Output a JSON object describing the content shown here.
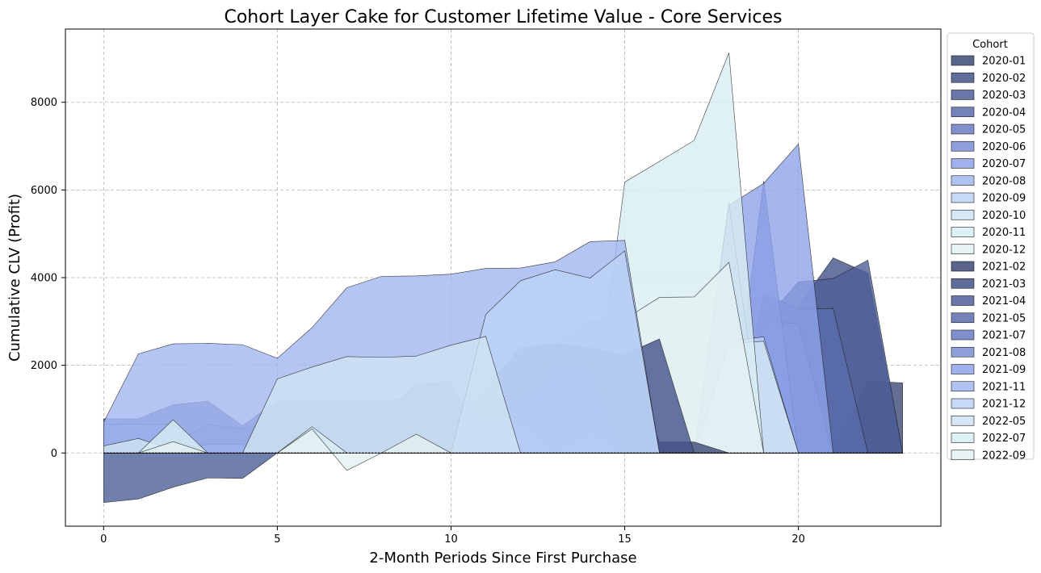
{
  "chart_data": {
    "type": "area",
    "title": "Cohort Layer Cake for Customer Lifetime Value - Core Services",
    "xlabel": "2-Month Periods Since First Purchase",
    "ylabel": "Cumulative CLV (Profit)",
    "xlim": [
      -1.1,
      24.1
    ],
    "ylim": [
      -1670,
      9670
    ],
    "xticks": [
      0,
      5,
      10,
      15,
      20
    ],
    "yticks": [
      0,
      2000,
      4000,
      6000,
      8000
    ],
    "grid": true,
    "legend_title": "Cohort",
    "legend_position": "right",
    "series": [
      {
        "name": "2020-01",
        "color": "#3d4a78",
        "x": [
          0,
          1,
          2,
          3,
          4,
          5,
          6,
          7,
          8,
          9,
          10,
          11,
          12,
          13,
          14,
          15,
          16,
          17,
          18,
          19,
          20,
          21,
          22,
          23
        ],
        "values": [
          0,
          0,
          0,
          0,
          0,
          0,
          0,
          0,
          0,
          0,
          0,
          0,
          0,
          0,
          0,
          0,
          0,
          0,
          0,
          0,
          0,
          0,
          1640,
          1600
        ]
      },
      {
        "name": "2020-02",
        "color": "#44538a",
        "x": [
          0,
          1,
          2,
          3,
          4,
          5,
          6,
          7,
          8,
          9,
          10,
          11,
          12,
          13,
          14,
          15,
          16,
          17,
          18,
          19,
          20,
          21,
          22,
          23
        ],
        "values": [
          0,
          0,
          0,
          0,
          0,
          0,
          0,
          0,
          0,
          0,
          0,
          0,
          0,
          0,
          0,
          0,
          0,
          0,
          0,
          0,
          3350,
          4450,
          4100,
          0
        ]
      },
      {
        "name": "2020-03",
        "color": "#4d5f98",
        "x": [
          0,
          1,
          2,
          3,
          4,
          5,
          6,
          7,
          8,
          9,
          10,
          11,
          12,
          13,
          14,
          15,
          16,
          17,
          18,
          19,
          20,
          21,
          22,
          23
        ],
        "values": [
          0,
          0,
          0,
          0,
          0,
          0,
          0,
          0,
          0,
          0,
          0,
          0,
          0,
          0,
          0,
          0,
          0,
          0,
          0,
          3000,
          3900,
          3980,
          4400,
          0
        ]
      },
      {
        "name": "2020-04",
        "color": "#5a6cab",
        "x": [
          0,
          1,
          2,
          3,
          4,
          5,
          6,
          7,
          8,
          9,
          10,
          11,
          12,
          13,
          14,
          15,
          16,
          17,
          18,
          19,
          20,
          21,
          22,
          23
        ],
        "values": [
          0,
          0,
          0,
          0,
          0,
          0,
          0,
          0,
          0,
          0,
          0,
          0,
          0,
          0,
          0,
          0,
          0,
          0,
          0,
          3650,
          3280,
          3300,
          0,
          0
        ]
      },
      {
        "name": "2020-05",
        "color": "#6b7dc2",
        "x": [
          0,
          1,
          2,
          3,
          4,
          5,
          6,
          7,
          8,
          9,
          10,
          11,
          12,
          13,
          14,
          15,
          16,
          17,
          18,
          19,
          20,
          21,
          22,
          23
        ],
        "values": [
          0,
          0,
          0,
          0,
          0,
          0,
          0,
          0,
          0,
          0,
          0,
          0,
          0,
          0,
          0,
          0,
          0,
          0,
          0,
          3000,
          2950,
          0,
          0,
          0
        ]
      },
      {
        "name": "2020-06",
        "color": "#7a8ed6",
        "x": [
          0,
          1,
          2,
          3,
          4,
          5,
          6,
          7,
          8,
          9,
          10,
          11,
          12,
          13,
          14,
          15,
          16,
          17,
          18,
          19,
          20,
          21,
          22,
          23
        ],
        "values": [
          0,
          0,
          0,
          0,
          0,
          0,
          0,
          0,
          0,
          0,
          0,
          0,
          0,
          0,
          0,
          0,
          0,
          0,
          0,
          6200,
          0,
          0,
          0,
          0
        ]
      },
      {
        "name": "2020-07",
        "color": "#8fa3e8",
        "x": [
          0,
          1,
          2,
          3,
          4,
          5,
          6,
          7,
          8,
          9,
          10,
          11,
          12,
          13,
          14,
          15,
          16,
          17,
          18,
          19,
          20,
          21,
          22,
          23
        ],
        "values": [
          0,
          0,
          0,
          0,
          0,
          0,
          0,
          0,
          0,
          0,
          0,
          0,
          0,
          0,
          0,
          0,
          0,
          0,
          5650,
          6150,
          7050,
          0,
          0,
          0
        ]
      },
      {
        "name": "2020-08",
        "color": "#a3b6f0",
        "x": [
          0,
          1,
          2,
          3,
          4,
          5,
          6,
          7,
          8,
          9,
          10,
          11,
          12,
          13,
          14,
          15,
          16,
          17,
          18,
          19,
          20,
          21,
          22,
          23
        ],
        "values": [
          0,
          0,
          0,
          0,
          0,
          0,
          0,
          0,
          0,
          0,
          0,
          0,
          0,
          0,
          0,
          0,
          0,
          0,
          5700,
          0,
          0,
          0,
          0,
          0
        ]
      },
      {
        "name": "2020-09",
        "color": "#bcd2f5",
        "x": [
          0,
          1,
          2,
          3,
          4,
          5,
          6,
          7,
          8,
          9,
          10,
          11,
          12,
          13,
          14,
          15,
          16,
          17,
          18,
          19,
          20,
          21,
          22,
          23
        ],
        "values": [
          0,
          0,
          0,
          0,
          0,
          0,
          0,
          0,
          0,
          0,
          0,
          0,
          0,
          0,
          0,
          0,
          0,
          0,
          2550,
          2650,
          0,
          0,
          0,
          0
        ]
      },
      {
        "name": "2020-10",
        "color": "#cfe3f3",
        "x": [
          0,
          1,
          2,
          3,
          4,
          5,
          6,
          7,
          8,
          9,
          10,
          11,
          12,
          13,
          14,
          15,
          16,
          17,
          18,
          19,
          20,
          21,
          22,
          23
        ],
        "values": [
          0,
          0,
          0,
          0,
          0,
          0,
          0,
          0,
          0,
          0,
          0,
          0,
          0,
          0,
          0,
          0,
          0,
          0,
          2500,
          2550,
          0,
          0,
          0,
          0
        ]
      },
      {
        "name": "2020-11",
        "color": "#d8eef2",
        "x": [
          0,
          1,
          2,
          3,
          4,
          5,
          6,
          7,
          8,
          9,
          10,
          11,
          12,
          13,
          14,
          15,
          16,
          17,
          18,
          19,
          20,
          21,
          22,
          23
        ],
        "values": [
          0,
          0,
          0,
          0,
          0,
          0,
          0,
          0,
          0,
          0,
          0,
          0,
          0,
          0,
          0,
          6180,
          6650,
          7130,
          9130,
          0,
          0,
          0,
          0,
          0
        ]
      },
      {
        "name": "2020-12",
        "color": "#e3f1f1",
        "x": [
          0,
          1,
          2,
          3,
          4,
          5,
          6,
          7,
          8,
          9,
          10,
          11,
          12,
          13,
          14,
          15,
          16,
          17,
          18,
          19,
          20,
          21,
          22,
          23
        ],
        "values": [
          0,
          0,
          0,
          0,
          0,
          0,
          0,
          0,
          0,
          0,
          0,
          0,
          0,
          2400,
          3000,
          3050,
          3550,
          3560,
          4350,
          0,
          0,
          0,
          0,
          0
        ]
      },
      {
        "name": "2021-02",
        "color": "#3d4a78",
        "x": [
          0,
          1,
          2,
          3,
          4,
          5,
          6,
          7,
          8,
          9,
          10,
          11,
          12,
          13,
          14,
          15,
          16,
          17,
          18,
          19,
          20,
          21,
          22,
          23
        ],
        "values": [
          0,
          0,
          0,
          0,
          0,
          0,
          0,
          0,
          0,
          0,
          0,
          1500,
          2400,
          2500,
          2400,
          2200,
          250,
          250,
          0,
          0,
          0,
          0,
          0,
          0
        ]
      },
      {
        "name": "2021-03",
        "color": "#44538a",
        "x": [
          0,
          1,
          2,
          3,
          4,
          5,
          6,
          7,
          8,
          9,
          10,
          11,
          12,
          13,
          14,
          15,
          16,
          17,
          18,
          19,
          20,
          21,
          22,
          23
        ],
        "values": [
          0,
          0,
          0,
          0,
          0,
          0,
          0,
          0,
          0,
          0,
          0,
          0,
          0,
          1700,
          1950,
          2250,
          2600,
          0,
          0,
          0,
          0,
          0,
          0,
          0
        ]
      },
      {
        "name": "2021-04",
        "color": "#4d5f98",
        "x": [
          0,
          1,
          2,
          3,
          4,
          5,
          6,
          7,
          8,
          9,
          10,
          11,
          12,
          13,
          14,
          15,
          16,
          17,
          18,
          19,
          20,
          21,
          22,
          23
        ],
        "values": [
          -1130,
          -1050,
          -780,
          -570,
          -580,
          0,
          800,
          500,
          860,
          1570,
          1630,
          0,
          0,
          2250,
          0,
          0,
          0,
          0,
          0,
          0,
          0,
          0,
          0,
          0
        ]
      },
      {
        "name": "2021-05",
        "color": "#5a6cab",
        "x": [
          0,
          1,
          2,
          3,
          4,
          5,
          6,
          7,
          8,
          9,
          10,
          11,
          12,
          13,
          14,
          15,
          16,
          17,
          18,
          19,
          20,
          21,
          22,
          23
        ],
        "values": [
          780,
          780,
          1100,
          1180,
          620,
          1190,
          1170,
          1190,
          1200,
          1220,
          1200,
          1200,
          1220,
          1900,
          1930,
          0,
          0,
          0,
          0,
          0,
          0,
          0,
          0,
          0
        ]
      },
      {
        "name": "2021-07",
        "color": "#6b7dc2",
        "x": [
          0,
          1,
          2,
          3,
          4,
          5,
          6,
          7,
          8,
          9,
          10,
          11,
          12,
          13,
          14,
          15,
          16,
          17,
          18,
          19,
          20,
          21,
          22,
          23
        ],
        "values": [
          0,
          0,
          200,
          650,
          560,
          680,
          0,
          0,
          0,
          1200,
          1150,
          780,
          830,
          1050,
          0,
          0,
          0,
          0,
          0,
          0,
          0,
          0,
          0,
          0
        ]
      },
      {
        "name": "2021-08",
        "color": "#7a8ed6",
        "x": [
          0,
          1,
          2,
          3,
          4,
          5,
          6,
          7,
          8,
          9,
          10,
          11,
          12,
          13,
          14,
          15,
          16,
          17,
          18,
          19,
          20,
          21,
          22,
          23
        ],
        "values": [
          650,
          660,
          660,
          0,
          0,
          630,
          0,
          700,
          0,
          0,
          0,
          680,
          680,
          0,
          500,
          0,
          0,
          0,
          0,
          0,
          0,
          0,
          0,
          0
        ]
      },
      {
        "name": "2021-09",
        "color": "#8fa3e8",
        "x": [
          0,
          1,
          2,
          3,
          4,
          5,
          6,
          7,
          8,
          9,
          10,
          11,
          12,
          13,
          14,
          15,
          16,
          17,
          18,
          19,
          20,
          21,
          22,
          23
        ],
        "values": [
          0,
          0,
          0,
          200,
          200,
          0,
          0,
          0,
          650,
          0,
          0,
          0,
          0,
          0,
          0,
          0,
          0,
          0,
          0,
          0,
          0,
          0,
          0,
          0
        ]
      },
      {
        "name": "2021-11",
        "color": "#a3b6f0",
        "x": [
          0,
          1,
          2,
          3,
          4,
          5,
          6,
          7,
          8,
          9,
          10,
          11,
          12,
          13,
          14,
          15,
          16,
          17,
          18,
          19,
          20,
          21,
          22,
          23
        ],
        "values": [
          700,
          2260,
          2490,
          2500,
          2470,
          2160,
          2860,
          3770,
          4030,
          4040,
          4080,
          4210,
          4220,
          4360,
          4820,
          4850,
          0,
          0,
          0,
          0,
          0,
          0,
          0,
          0
        ]
      },
      {
        "name": "2021-12",
        "color": "#bcd2f5",
        "x": [
          0,
          1,
          2,
          3,
          4,
          5,
          6,
          7,
          8,
          9,
          10,
          11,
          12,
          13,
          14,
          15,
          16,
          17,
          18,
          19,
          20,
          21,
          22,
          23
        ],
        "values": [
          0,
          0,
          0,
          0,
          0,
          0,
          0,
          0,
          0,
          0,
          0,
          3160,
          3930,
          4180,
          3990,
          4610,
          0,
          0,
          0,
          0,
          0,
          0,
          0,
          0
        ]
      },
      {
        "name": "2022-05",
        "color": "#cfe3f3",
        "x": [
          0,
          1,
          2,
          3,
          4,
          5,
          6,
          7,
          8,
          9,
          10,
          11,
          12,
          13,
          14,
          15,
          16,
          17,
          18,
          19,
          20,
          21,
          22,
          23
        ],
        "values": [
          160,
          330,
          70,
          0,
          0,
          1690,
          1960,
          2200,
          2180,
          2210,
          2460,
          2660,
          0,
          0,
          0,
          0,
          0,
          0,
          0,
          0,
          0,
          0,
          0,
          0
        ]
      },
      {
        "name": "2022-07",
        "color": "#d8eef2",
        "x": [
          0,
          1,
          2,
          3,
          4,
          5,
          6,
          7,
          8,
          9,
          10,
          11,
          12,
          13,
          14,
          15,
          16,
          17,
          18,
          19,
          20,
          21,
          22,
          23
        ],
        "values": [
          0,
          0,
          760,
          0,
          0,
          0,
          600,
          0,
          0,
          0,
          0,
          0,
          0,
          0,
          0,
          0,
          0,
          0,
          0,
          0,
          0,
          0,
          0,
          0
        ]
      },
      {
        "name": "2022-09",
        "color": "#e3f1f1",
        "x": [
          0,
          1,
          2,
          3,
          4,
          5,
          6,
          7,
          8,
          9,
          10,
          11,
          12,
          13,
          14,
          15,
          16,
          17,
          18,
          19,
          20,
          21,
          22,
          23
        ],
        "values": [
          0,
          0,
          260,
          0,
          0,
          0,
          550,
          -400,
          0,
          430,
          0,
          0,
          0,
          0,
          0,
          0,
          0,
          0,
          0,
          0,
          0,
          0,
          0,
          0
        ]
      }
    ]
  }
}
